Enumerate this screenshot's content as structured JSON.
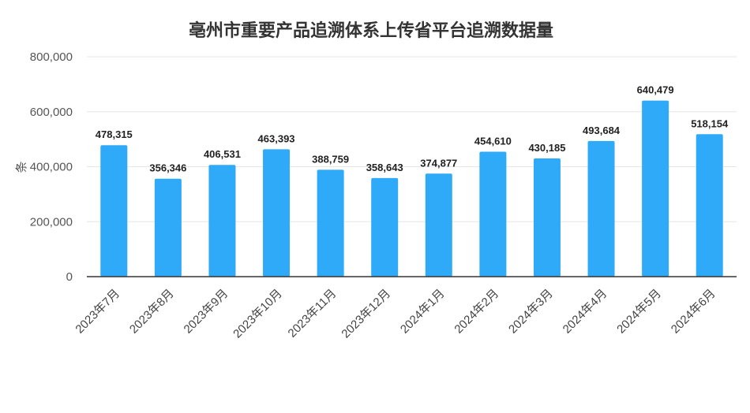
{
  "chart_data": {
    "type": "bar",
    "title": "亳州市重要产品追溯体系上传省平台追溯数据量",
    "ylabel": "条",
    "xlabel": "",
    "ylim": [
      0,
      800000
    ],
    "yticks": [
      "0",
      "200,000",
      "400,000",
      "600,000",
      "800,000"
    ],
    "categories": [
      "2023年7月",
      "2023年8月",
      "2023年9月",
      "2023年10月",
      "2023年11月",
      "2023年12月",
      "2024年1月",
      "2024年2月",
      "2024年3月",
      "2024年4月",
      "2024年5月",
      "2024年6月"
    ],
    "values": [
      478315,
      356346,
      406531,
      463393,
      388759,
      358643,
      374877,
      454610,
      430185,
      493684,
      640479,
      518154
    ],
    "value_labels": [
      "478,315",
      "356,346",
      "406,531",
      "463,393",
      "388,759",
      "358,643",
      "374,877",
      "454,610",
      "430,185",
      "493,684",
      "640,479",
      "518,154"
    ],
    "bar_color": "#2eaaf8",
    "grid": true,
    "legend": "none"
  }
}
